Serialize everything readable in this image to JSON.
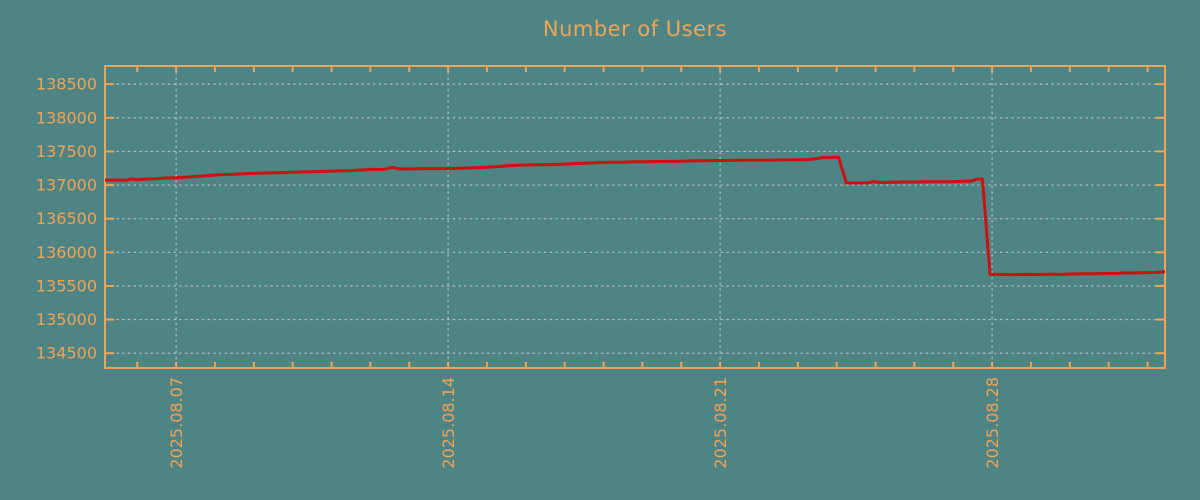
{
  "chart_data": {
    "type": "line",
    "title": "Number of Users",
    "xlabel": "",
    "ylabel": "",
    "grid": true,
    "legend": "none",
    "x_axis": {
      "tick_labels": [
        "2025.08.07",
        "2025.08.14",
        "2025.08.21",
        "2025.08.28"
      ],
      "tick_days": [
        0,
        7,
        14,
        21
      ],
      "range_days": [
        -1.83,
        25.45
      ],
      "minor_tick_step_days": 1
    },
    "y_axis": {
      "ticks": [
        134500,
        135000,
        135500,
        136000,
        136500,
        137000,
        137500,
        138000,
        138500
      ],
      "range": [
        134280,
        138770
      ]
    },
    "colors": {
      "background": "#4e8483",
      "axis": "#f0a456",
      "title": "#f0a456",
      "grid": "#b6bebe",
      "line": "#cb1111"
    },
    "series": [
      {
        "name": "Number of Users",
        "color": "#cb1111",
        "points": [
          [
            -1.83,
            137070
          ],
          [
            -1.55,
            137075
          ],
          [
            -1.3,
            137070
          ],
          [
            -1.15,
            137090
          ],
          [
            -1.0,
            137080
          ],
          [
            -0.75,
            137090
          ],
          [
            -0.5,
            137095
          ],
          [
            -0.25,
            137105
          ],
          [
            0.0,
            137110
          ],
          [
            0.3,
            137120
          ],
          [
            0.6,
            137130
          ],
          [
            0.9,
            137145
          ],
          [
            1.2,
            137155
          ],
          [
            1.5,
            137160
          ],
          [
            1.8,
            137170
          ],
          [
            2.1,
            137175
          ],
          [
            2.4,
            137180
          ],
          [
            2.7,
            137185
          ],
          [
            3.0,
            137190
          ],
          [
            3.3,
            137195
          ],
          [
            3.6,
            137200
          ],
          [
            3.9,
            137205
          ],
          [
            4.2,
            137210
          ],
          [
            4.5,
            137215
          ],
          [
            4.8,
            137225
          ],
          [
            5.1,
            137235
          ],
          [
            5.35,
            137230
          ],
          [
            5.55,
            137262
          ],
          [
            5.75,
            137240
          ],
          [
            6.1,
            137240
          ],
          [
            6.4,
            137245
          ],
          [
            6.7,
            137245
          ],
          [
            7.0,
            137245
          ],
          [
            7.3,
            137250
          ],
          [
            7.6,
            137255
          ],
          [
            7.9,
            137262
          ],
          [
            8.2,
            137272
          ],
          [
            8.5,
            137285
          ],
          [
            8.8,
            137295
          ],
          [
            9.1,
            137300
          ],
          [
            9.4,
            137302
          ],
          [
            9.7,
            137305
          ],
          [
            10.0,
            137312
          ],
          [
            10.3,
            137320
          ],
          [
            10.6,
            137327
          ],
          [
            10.9,
            137335
          ],
          [
            11.2,
            137340
          ],
          [
            11.5,
            137340
          ],
          [
            11.8,
            137345
          ],
          [
            12.1,
            137347
          ],
          [
            12.4,
            137350
          ],
          [
            12.7,
            137352
          ],
          [
            13.0,
            137355
          ],
          [
            13.3,
            137360
          ],
          [
            13.6,
            137362
          ],
          [
            13.9,
            137365
          ],
          [
            14.2,
            137365
          ],
          [
            14.5,
            137368
          ],
          [
            14.8,
            137370
          ],
          [
            15.1,
            137370
          ],
          [
            15.4,
            137373
          ],
          [
            15.7,
            137375
          ],
          [
            16.0,
            137377
          ],
          [
            16.3,
            137380
          ],
          [
            16.5,
            137395
          ],
          [
            16.65,
            137410
          ],
          [
            16.8,
            137405
          ],
          [
            16.95,
            137412
          ],
          [
            17.05,
            137410
          ],
          [
            17.25,
            137030
          ],
          [
            17.55,
            137030
          ],
          [
            17.8,
            137032
          ],
          [
            17.95,
            137052
          ],
          [
            18.1,
            137040
          ],
          [
            18.4,
            137040
          ],
          [
            18.7,
            137045
          ],
          [
            19.0,
            137045
          ],
          [
            19.3,
            137048
          ],
          [
            19.6,
            137050
          ],
          [
            19.9,
            137050
          ],
          [
            20.2,
            137055
          ],
          [
            20.45,
            137060
          ],
          [
            20.6,
            137085
          ],
          [
            20.75,
            137090
          ],
          [
            20.95,
            135672
          ],
          [
            21.25,
            135672
          ],
          [
            21.55,
            135668
          ],
          [
            21.85,
            135672
          ],
          [
            22.15,
            135670
          ],
          [
            22.45,
            135675
          ],
          [
            22.75,
            135672
          ],
          [
            23.05,
            135678
          ],
          [
            23.35,
            135680
          ],
          [
            23.65,
            135680
          ],
          [
            23.95,
            135685
          ],
          [
            24.2,
            135685
          ],
          [
            24.4,
            135697
          ],
          [
            24.65,
            135692
          ],
          [
            24.95,
            135698
          ],
          [
            25.2,
            135700
          ],
          [
            25.45,
            135710
          ]
        ]
      }
    ]
  }
}
